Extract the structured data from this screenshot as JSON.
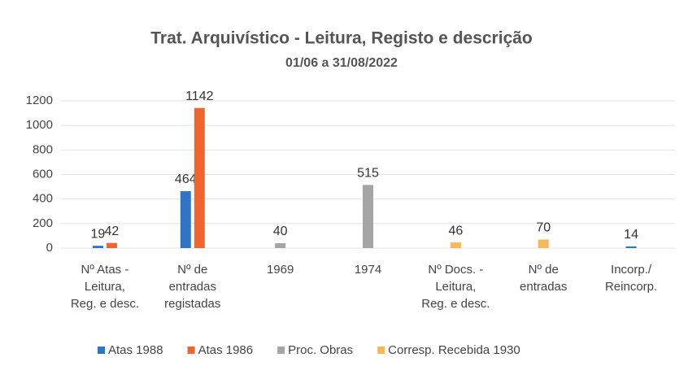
{
  "chart_data": {
    "type": "bar",
    "title": "Trat. Arquivístico - Leitura, Registo e descrição",
    "subtitle": "01/06 a 31/08/2022",
    "categories": [
      [
        "Nº Atas -",
        "Leitura,",
        "Reg. e desc."
      ],
      [
        "Nº de",
        "entradas",
        "registadas"
      ],
      [
        "1969"
      ],
      [
        "1974"
      ],
      [
        "Nº Docs. -",
        "Leitura,",
        "Reg. e desc."
      ],
      [
        "Nº de",
        "entradas"
      ],
      [
        "Incorp./",
        "Reincorp."
      ]
    ],
    "series": [
      {
        "name": "Atas 1988",
        "color": "#2e75c8",
        "values": [
          19,
          464,
          null,
          null,
          null,
          null,
          14
        ]
      },
      {
        "name": "Atas 1986",
        "color": "#f0642e",
        "values": [
          42,
          1142,
          null,
          null,
          null,
          null,
          null
        ]
      },
      {
        "name": "Proc. Obras",
        "color": "#a5a5a5",
        "values": [
          null,
          null,
          40,
          515,
          null,
          null,
          null
        ]
      },
      {
        "name": "Corresp. Recebida 1930",
        "color": "#f5b85a",
        "values": [
          null,
          null,
          null,
          null,
          46,
          70,
          null
        ]
      }
    ],
    "ylim": [
      0,
      1200
    ],
    "yticks": [
      0,
      200,
      400,
      600,
      800,
      1000,
      1200
    ],
    "grid": true,
    "legend": "bottom"
  }
}
